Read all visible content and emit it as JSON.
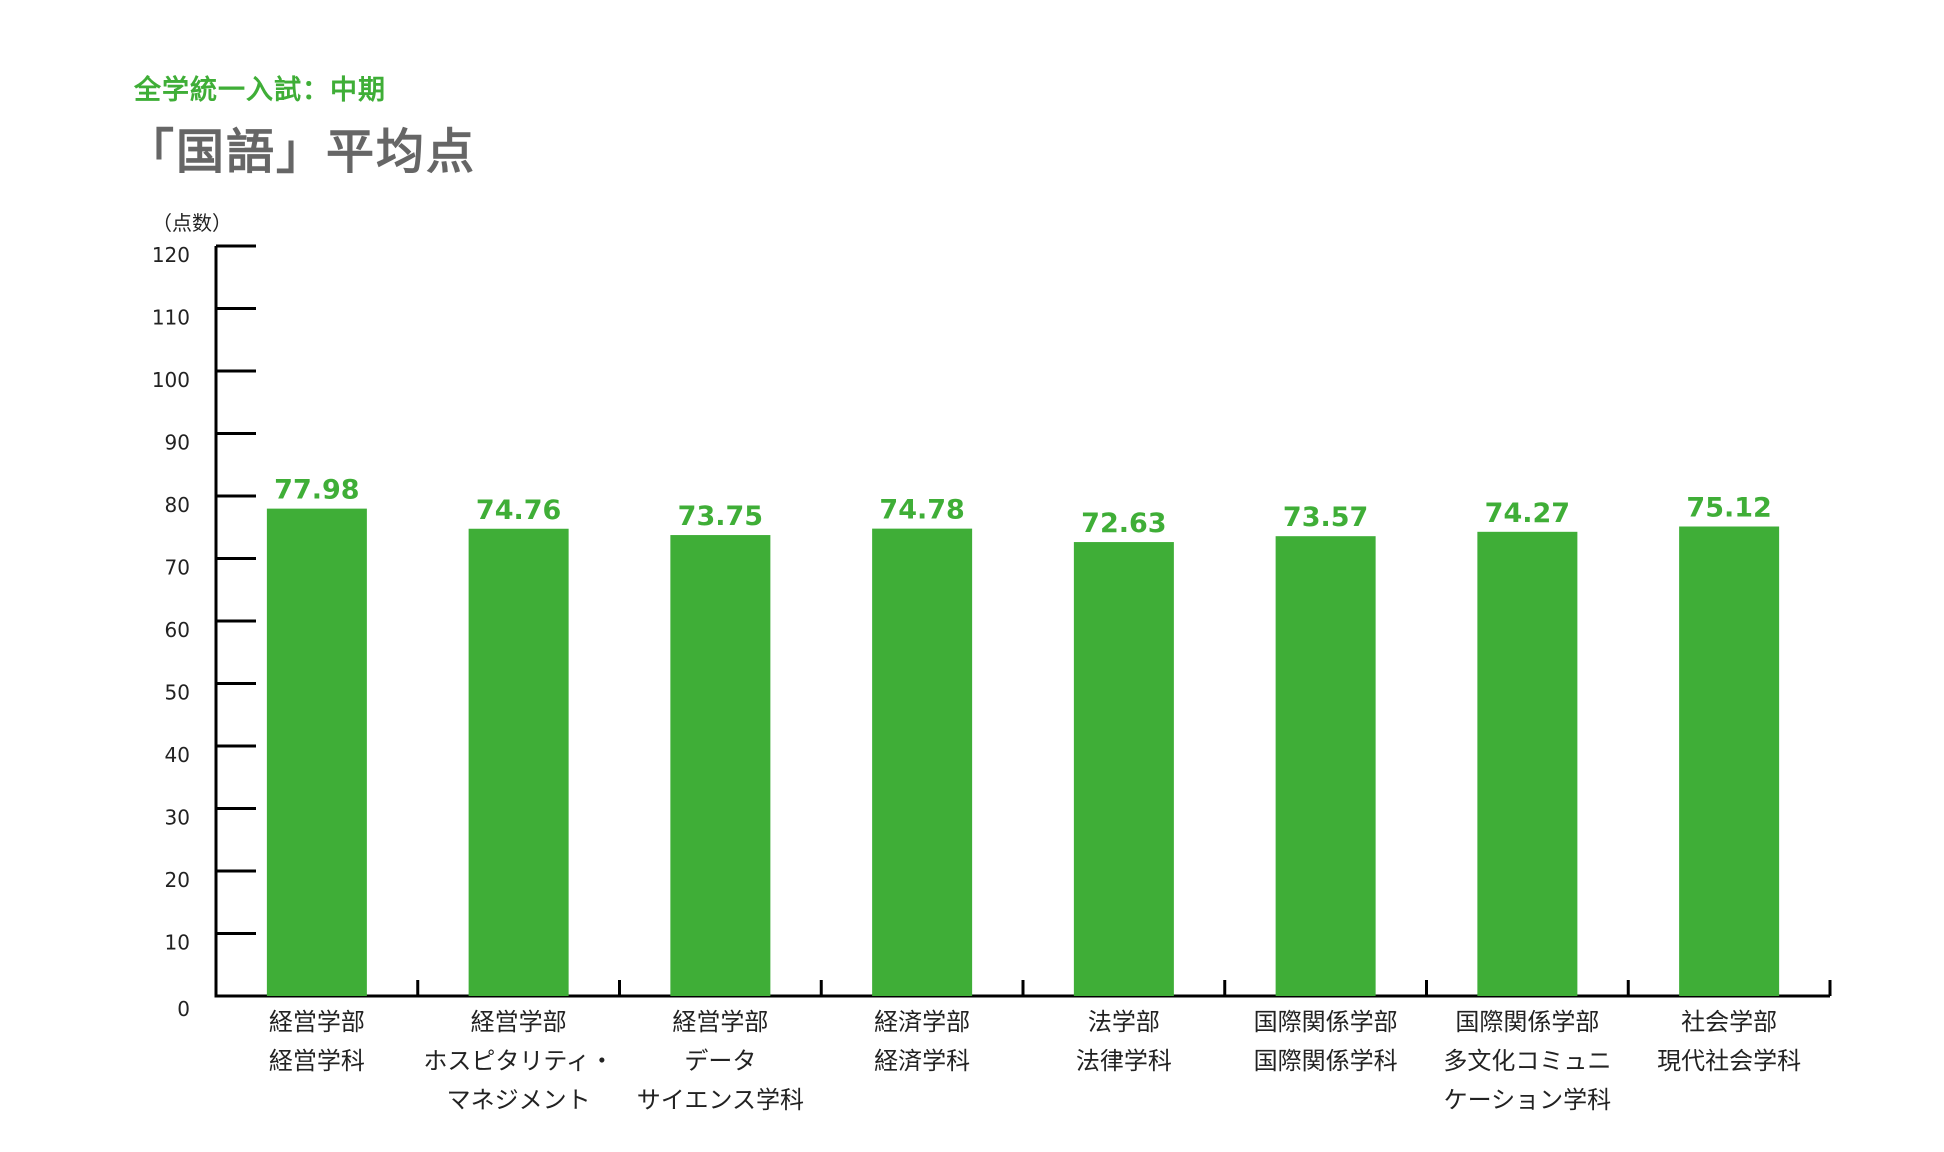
{
  "header": {
    "subtitle": "全学統一入試：中期",
    "title": "「国語」平均点"
  },
  "chart_data": {
    "type": "bar",
    "title": "「国語」平均点",
    "subtitle": "全学統一入試：中期",
    "ylabel": "（点数）",
    "xlabel": "",
    "ylim": [
      0,
      120
    ],
    "yticks": [
      0,
      10,
      20,
      30,
      40,
      50,
      60,
      70,
      80,
      90,
      100,
      110,
      120
    ],
    "categories": [
      [
        "経営学部",
        "経営学科"
      ],
      [
        "経営学部",
        "ホスピタリティ・",
        "マネジメント"
      ],
      [
        "経営学部",
        "データ",
        "サイエンス学科"
      ],
      [
        "経済学部",
        "経済学科"
      ],
      [
        "法学部",
        "法律学科"
      ],
      [
        "国際関係学部",
        "国際関係学科"
      ],
      [
        "国際関係学部",
        "多文化コミュニ",
        "ケーション学科"
      ],
      [
        "社会学部",
        "現代社会学科"
      ]
    ],
    "values": [
      77.98,
      74.76,
      73.75,
      74.78,
      72.63,
      73.57,
      74.27,
      75.12
    ],
    "value_labels": [
      "77.98",
      "74.76",
      "73.75",
      "74.78",
      "72.63",
      "73.57",
      "74.27",
      "75.12"
    ],
    "bar_color": "#3fae37",
    "label_color": "#3fae37",
    "grid": false,
    "legend": "none"
  }
}
